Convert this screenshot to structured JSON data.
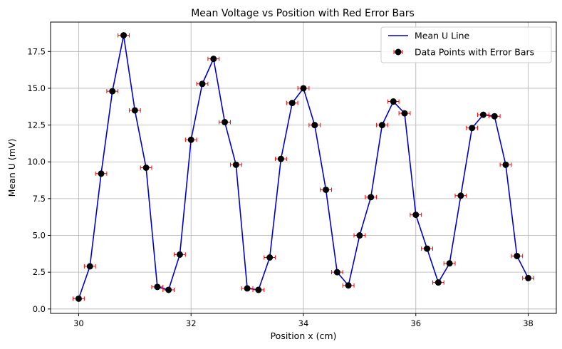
{
  "chart_data": {
    "type": "line",
    "title": "Mean Voltage vs Position with Red Error Bars",
    "xlabel": "Position x (cm)",
    "ylabel": "Mean U (mV)",
    "xlim": [
      29.5,
      38.5
    ],
    "ylim": [
      -0.3,
      19.5
    ],
    "xticks": [
      30,
      32,
      34,
      36,
      38
    ],
    "xtick_labels": [
      "30",
      "32",
      "34",
      "36",
      "38"
    ],
    "yticks": [
      0.0,
      2.5,
      5.0,
      7.5,
      10.0,
      12.5,
      15.0,
      17.5
    ],
    "ytick_labels": [
      "0.0",
      "2.5",
      "5.0",
      "7.5",
      "10.0",
      "12.5",
      "15.0",
      "17.5"
    ],
    "grid": true,
    "legend_position": "top-right",
    "x_error": 0.1,
    "x": [
      30.0,
      30.2,
      30.4,
      30.6,
      30.8,
      31.0,
      31.2,
      31.4,
      31.6,
      31.8,
      32.0,
      32.2,
      32.4,
      32.6,
      32.8,
      33.0,
      33.2,
      33.4,
      33.6,
      33.8,
      34.0,
      34.2,
      34.4,
      34.6,
      34.8,
      35.0,
      35.2,
      35.4,
      35.6,
      35.8,
      36.0,
      36.2,
      36.4,
      36.6,
      36.8,
      37.0,
      37.2,
      37.4,
      37.6,
      37.8,
      38.0
    ],
    "series": [
      {
        "name": "Mean U Line",
        "kind": "line",
        "color": "#0000cc",
        "values": [
          0.7,
          2.9,
          9.2,
          14.8,
          18.6,
          13.5,
          9.6,
          1.5,
          1.3,
          3.7,
          11.5,
          15.3,
          17.0,
          12.7,
          9.8,
          1.4,
          1.3,
          3.5,
          10.2,
          14.0,
          15.0,
          12.5,
          8.1,
          2.5,
          1.6,
          5.0,
          7.6,
          12.5,
          14.1,
          13.3,
          6.4,
          4.1,
          1.8,
          3.1,
          7.7,
          12.3,
          13.2,
          13.1,
          9.8,
          3.6,
          2.1
        ]
      },
      {
        "name": "Data Points with Error Bars",
        "kind": "errorbar",
        "marker_color": "#000000",
        "error_color": "#ff0000",
        "values": [
          0.7,
          2.9,
          9.2,
          14.8,
          18.6,
          13.5,
          9.6,
          1.5,
          1.3,
          3.7,
          11.5,
          15.3,
          17.0,
          12.7,
          9.8,
          1.4,
          1.3,
          3.5,
          10.2,
          14.0,
          15.0,
          12.5,
          8.1,
          2.5,
          1.6,
          5.0,
          7.6,
          12.5,
          14.1,
          13.3,
          6.4,
          4.1,
          1.8,
          3.1,
          7.7,
          12.3,
          13.2,
          13.1,
          9.8,
          3.6,
          2.1
        ]
      }
    ]
  }
}
